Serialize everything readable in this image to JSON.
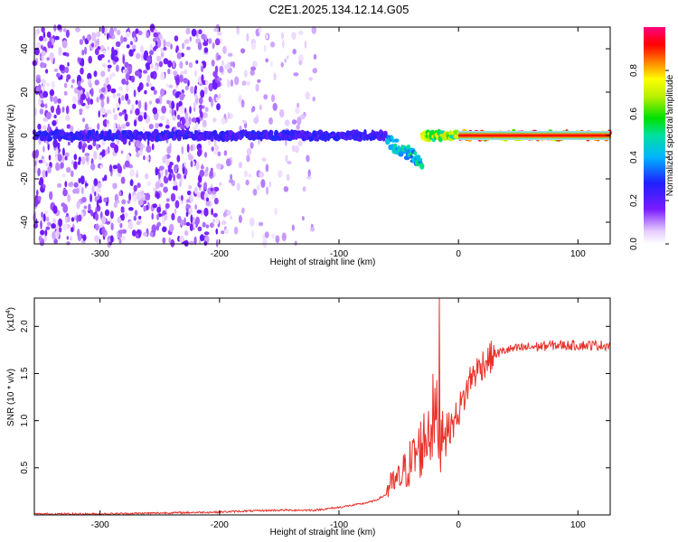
{
  "title": "C2E1.2025.134.12.14.G05",
  "chart_data": [
    {
      "type": "heatmap",
      "xlabel": "Height of straight line (km)",
      "ylabel": "Frequency (Hz)",
      "xlim": [
        -355,
        127
      ],
      "ylim": [
        -50,
        50
      ],
      "x_ticks": [
        -300,
        -200,
        -100,
        0,
        100
      ],
      "y_ticks": [
        -40,
        -20,
        0,
        20,
        40
      ],
      "colorbar": {
        "label": "Normalized spectral amplitude",
        "range": [
          0,
          1
        ],
        "ticks": [
          "0.0",
          "0.2",
          "0.4",
          "0.6",
          "0.8"
        ]
      },
      "features": [
        {
          "x": [
            -355,
            -120
          ],
          "desc": "scattered low-amplitude noise, dense below -200 km"
        },
        {
          "x": [
            -355,
            -60
          ],
          "freq": 0,
          "amplitude": 0.3
        },
        {
          "x": [
            -60,
            -30
          ],
          "freq": -8,
          "amplitude": 0.55
        },
        {
          "x": [
            -30,
            0
          ],
          "freq": 0,
          "amplitude": 0.8
        },
        {
          "x": [
            0,
            127
          ],
          "freq": 0,
          "amplitude": 1.0
        }
      ]
    },
    {
      "type": "line",
      "xlabel": "Height of straight line (km)",
      "ylabel": "SNR (10 * v/v)",
      "y_multiplier": "(x10",
      "y_multiplier_exp": "4",
      "xlim": [
        -355,
        127
      ],
      "ylim": [
        0,
        2.3
      ],
      "x_ticks": [
        -300,
        -200,
        -100,
        0,
        100
      ],
      "y_ticks": [
        "0.5",
        "1.0",
        "1.5",
        "2.0"
      ],
      "series": [
        {
          "color": "#e8312a",
          "x": [
            -355,
            -300,
            -250,
            -200,
            -180,
            -150,
            -120,
            -100,
            -80,
            -70,
            -60,
            -50,
            -40,
            -30,
            -25,
            -20,
            -15,
            -10,
            -5,
            0,
            5,
            10,
            20,
            30,
            40,
            60,
            80,
            100,
            127
          ],
          "values": [
            0.01,
            0.01,
            0.02,
            0.03,
            0.04,
            0.05,
            0.05,
            0.08,
            0.12,
            0.15,
            0.22,
            0.3,
            0.45,
            0.6,
            0.75,
            0.85,
            0.7,
            0.9,
            0.95,
            1.1,
            1.25,
            1.45,
            1.6,
            1.7,
            1.75,
            1.78,
            1.8,
            1.8,
            1.8
          ]
        }
      ]
    }
  ]
}
